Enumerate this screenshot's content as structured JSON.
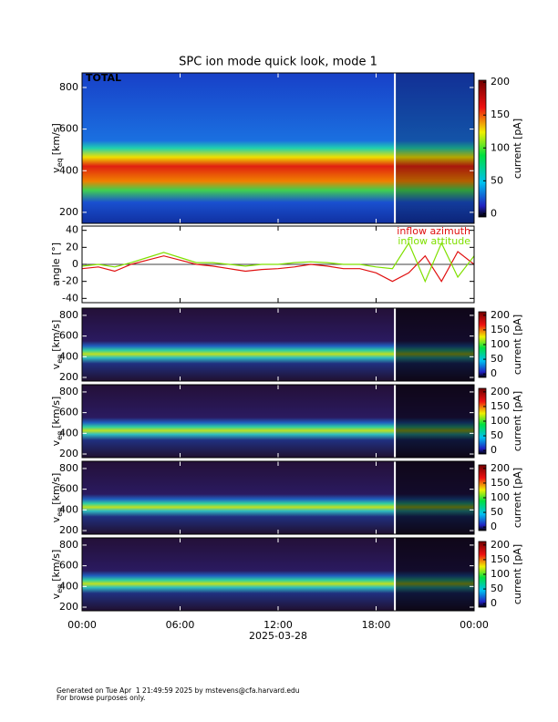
{
  "title": "SPC ion mode quick look, mode 1",
  "time_axis": {
    "xlim": [
      0,
      24
    ],
    "xticks": [
      {
        "value": 0,
        "label": "00:00"
      },
      {
        "value": 6,
        "label": "06:00"
      },
      {
        "value": 12,
        "label": "12:00"
      },
      {
        "value": 18,
        "label": "18:00"
      },
      {
        "value": 24,
        "label": "00:00"
      }
    ],
    "xlabel": "2025-03-28"
  },
  "chart_data": [
    {
      "type": "spectrogram",
      "panel_label": "TOTAL",
      "ylabel_symbol": "v",
      "ylabel_subscript": "eq",
      "ylabel_unit": "[km/s]",
      "ylim": [
        147,
        870
      ],
      "yticks": [
        200,
        400,
        600,
        800
      ],
      "colorbar": {
        "label": "current [pA]",
        "clim": [
          -5,
          203
        ],
        "ticks": [
          0,
          50,
          100,
          150,
          200
        ]
      }
    },
    {
      "type": "line",
      "ylabel": "angle [°]",
      "ylim": [
        -45,
        45
      ],
      "yticks": [
        -40,
        -20,
        0,
        20,
        40
      ],
      "legend": "upper right",
      "x": [
        0,
        1,
        2,
        3,
        4,
        5,
        6,
        7,
        8,
        9,
        10,
        11,
        12,
        13,
        14,
        15,
        16,
        17,
        18,
        19,
        20,
        21,
        22,
        23,
        24
      ],
      "series": [
        {
          "name": "inflow azimuth",
          "color": "#e01010",
          "values": [
            -5,
            -3,
            -8,
            0,
            5,
            10,
            5,
            0,
            -2,
            -5,
            -8,
            -6,
            -5,
            -3,
            0,
            -2,
            -5,
            -5,
            -10,
            -20,
            -10,
            10,
            -20,
            15,
            0
          ]
        },
        {
          "name": "inflow attitude",
          "color": "#80e000",
          "values": [
            -2,
            0,
            -3,
            2,
            8,
            14,
            8,
            2,
            2,
            0,
            -2,
            0,
            0,
            2,
            3,
            2,
            0,
            0,
            -3,
            -5,
            25,
            -20,
            25,
            -15,
            10
          ]
        }
      ]
    },
    {
      "type": "spectrogram",
      "ylabel_symbol": "v",
      "ylabel_subscript": "eq",
      "ylabel_unit": "[km/s]",
      "ylim": [
        165,
        870
      ],
      "yticks": [
        200,
        400,
        600,
        800
      ],
      "colorbar": {
        "label": "current [pA]",
        "clim": [
          -12,
          212
        ],
        "ticks": [
          0,
          50,
          100,
          150,
          200
        ]
      }
    },
    {
      "type": "spectrogram",
      "ylabel_symbol": "v",
      "ylabel_subscript": "eq",
      "ylabel_unit": "[km/s]",
      "ylim": [
        165,
        870
      ],
      "yticks": [
        200,
        400,
        600,
        800
      ],
      "colorbar": {
        "label": "current [pA]",
        "clim": [
          -12,
          212
        ],
        "ticks": [
          0,
          50,
          100,
          150,
          200
        ]
      }
    },
    {
      "type": "spectrogram",
      "ylabel_symbol": "v",
      "ylabel_subscript": "eq",
      "ylabel_unit": "[km/s]",
      "ylim": [
        165,
        870
      ],
      "yticks": [
        200,
        400,
        600,
        800
      ],
      "colorbar": {
        "label": "current [pA]",
        "clim": [
          -12,
          212
        ],
        "ticks": [
          0,
          50,
          100,
          150,
          200
        ]
      }
    },
    {
      "type": "spectrogram",
      "ylabel_symbol": "v",
      "ylabel_subscript": "eq",
      "ylabel_unit": "[km/s]",
      "ylim": [
        165,
        870
      ],
      "yticks": [
        200,
        400,
        600,
        800
      ],
      "colorbar": {
        "label": "current [pA]",
        "clim": [
          -12,
          212
        ],
        "ticks": [
          0,
          50,
          100,
          150,
          200
        ]
      }
    }
  ],
  "footer": [
    "Generated on Tue Apr  1 21:49:59 2025 by mstevens@cfa.harvard.edu",
    "For browse purposes only."
  ]
}
